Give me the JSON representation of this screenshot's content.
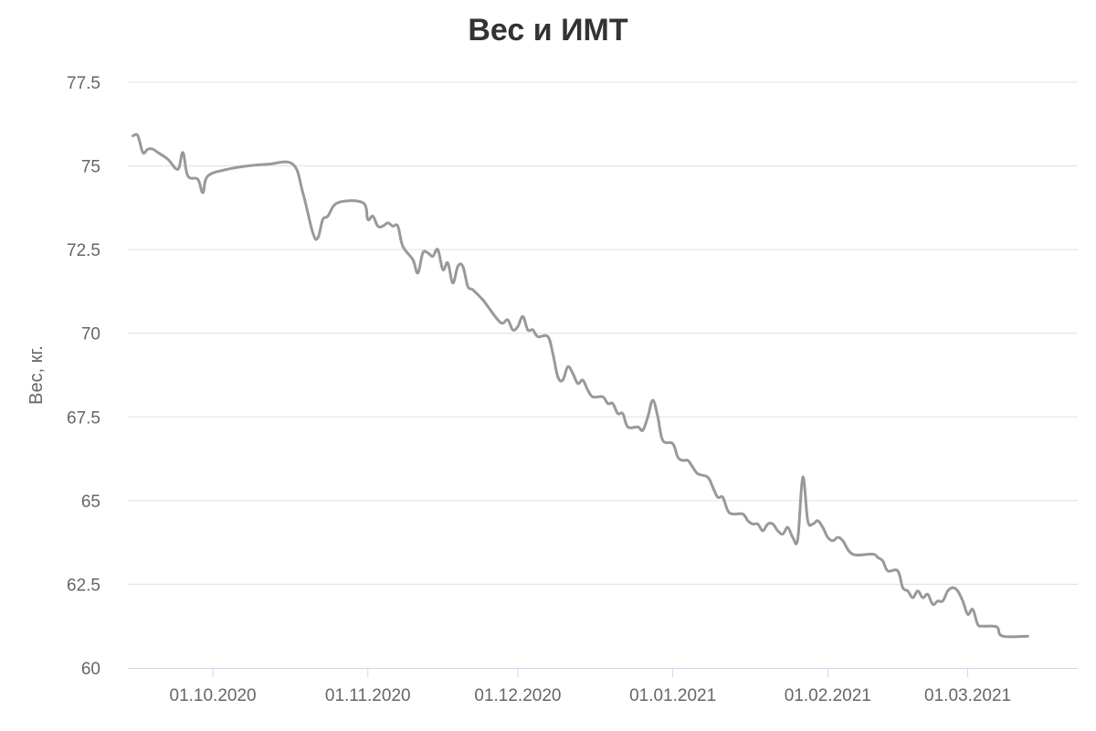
{
  "chart_data": {
    "type": "line",
    "title": "Вес и ИМТ",
    "xlabel": "",
    "ylabel": "Вес, кг.",
    "ylim": [
      60,
      77.5
    ],
    "xlim": [
      "2020-09-14",
      "2021-03-23"
    ],
    "yticks": [
      "60",
      "62.5",
      "65",
      "67.5",
      "70",
      "72.5",
      "75",
      "77.5"
    ],
    "xticks": [
      {
        "date": "2020-10-01",
        "label": "01.10.2020"
      },
      {
        "date": "2020-11-01",
        "label": "01.11.2020"
      },
      {
        "date": "2020-12-01",
        "label": "01.12.2020"
      },
      {
        "date": "2021-01-01",
        "label": "01.01.2021"
      },
      {
        "date": "2021-02-01",
        "label": "01.02.2021"
      },
      {
        "date": "2021-03-01",
        "label": "01.03.2021"
      }
    ],
    "grid": true,
    "line_color": "#999999",
    "series": [
      {
        "points": [
          [
            "2020-09-15",
            75.9
          ],
          [
            "2020-09-16",
            75.9
          ],
          [
            "2020-09-17",
            75.4
          ],
          [
            "2020-09-18",
            75.5
          ],
          [
            "2020-09-19",
            75.5
          ],
          [
            "2020-09-20",
            75.4
          ],
          [
            "2020-09-22",
            75.2
          ],
          [
            "2020-09-24",
            74.9
          ],
          [
            "2020-09-25",
            75.4
          ],
          [
            "2020-09-26",
            74.7
          ],
          [
            "2020-09-28",
            74.6
          ],
          [
            "2020-09-29",
            74.2
          ],
          [
            "2020-09-30",
            74.7
          ],
          [
            "2020-10-04",
            74.9
          ],
          [
            "2020-10-08",
            75.0
          ],
          [
            "2020-10-12",
            75.05
          ],
          [
            "2020-10-17",
            75.05
          ],
          [
            "2020-10-19",
            74.2
          ],
          [
            "2020-10-21",
            73.0
          ],
          [
            "2020-10-22",
            72.85
          ],
          [
            "2020-10-23",
            73.4
          ],
          [
            "2020-10-24",
            73.5
          ],
          [
            "2020-10-26",
            73.9
          ],
          [
            "2020-10-31",
            73.9
          ],
          [
            "2020-11-01",
            73.4
          ],
          [
            "2020-11-02",
            73.5
          ],
          [
            "2020-11-03",
            73.2
          ],
          [
            "2020-11-04",
            73.2
          ],
          [
            "2020-11-05",
            73.3
          ],
          [
            "2020-11-06",
            73.2
          ],
          [
            "2020-11-07",
            73.2
          ],
          [
            "2020-11-08",
            72.6
          ],
          [
            "2020-11-10",
            72.2
          ],
          [
            "2020-11-11",
            71.8
          ],
          [
            "2020-11-12",
            72.4
          ],
          [
            "2020-11-13",
            72.4
          ],
          [
            "2020-11-14",
            72.3
          ],
          [
            "2020-11-15",
            72.5
          ],
          [
            "2020-11-16",
            71.9
          ],
          [
            "2020-11-17",
            72.1
          ],
          [
            "2020-11-18",
            71.5
          ],
          [
            "2020-11-19",
            72.0
          ],
          [
            "2020-11-20",
            72.0
          ],
          [
            "2020-11-21",
            71.4
          ],
          [
            "2020-11-22",
            71.3
          ],
          [
            "2020-11-24",
            71.0
          ],
          [
            "2020-11-25",
            70.8
          ],
          [
            "2020-11-27",
            70.4
          ],
          [
            "2020-11-28",
            70.3
          ],
          [
            "2020-11-29",
            70.4
          ],
          [
            "2020-11-30",
            70.1
          ],
          [
            "2020-12-01",
            70.2
          ],
          [
            "2020-12-02",
            70.5
          ],
          [
            "2020-12-03",
            70.1
          ],
          [
            "2020-12-04",
            70.1
          ],
          [
            "2020-12-05",
            69.9
          ],
          [
            "2020-12-07",
            69.9
          ],
          [
            "2020-12-08",
            69.4
          ],
          [
            "2020-12-09",
            68.7
          ],
          [
            "2020-12-10",
            68.6
          ],
          [
            "2020-12-11",
            69.0
          ],
          [
            "2020-12-12",
            68.8
          ],
          [
            "2020-12-13",
            68.5
          ],
          [
            "2020-12-14",
            68.6
          ],
          [
            "2020-12-15",
            68.3
          ],
          [
            "2020-12-16",
            68.1
          ],
          [
            "2020-12-18",
            68.1
          ],
          [
            "2020-12-19",
            67.9
          ],
          [
            "2020-12-20",
            67.9
          ],
          [
            "2020-12-21",
            67.6
          ],
          [
            "2020-12-22",
            67.6
          ],
          [
            "2020-12-23",
            67.2
          ],
          [
            "2020-12-25",
            67.2
          ],
          [
            "2020-12-26",
            67.1
          ],
          [
            "2020-12-27",
            67.5
          ],
          [
            "2020-12-28",
            68.0
          ],
          [
            "2020-12-29",
            67.5
          ],
          [
            "2020-12-30",
            66.8
          ],
          [
            "2021-01-01",
            66.7
          ],
          [
            "2021-01-02",
            66.3
          ],
          [
            "2021-01-03",
            66.2
          ],
          [
            "2021-01-04",
            66.2
          ],
          [
            "2021-01-05",
            66.0
          ],
          [
            "2021-01-06",
            65.8
          ],
          [
            "2021-01-08",
            65.7
          ],
          [
            "2021-01-09",
            65.4
          ],
          [
            "2021-01-10",
            65.1
          ],
          [
            "2021-01-11",
            65.1
          ],
          [
            "2021-01-12",
            64.7
          ],
          [
            "2021-01-13",
            64.6
          ],
          [
            "2021-01-15",
            64.6
          ],
          [
            "2021-01-16",
            64.4
          ],
          [
            "2021-01-17",
            64.3
          ],
          [
            "2021-01-18",
            64.3
          ],
          [
            "2021-01-19",
            64.1
          ],
          [
            "2021-01-20",
            64.3
          ],
          [
            "2021-01-21",
            64.3
          ],
          [
            "2021-01-22",
            64.1
          ],
          [
            "2021-01-23",
            64.0
          ],
          [
            "2021-01-24",
            64.2
          ],
          [
            "2021-01-25",
            63.9
          ],
          [
            "2021-01-26",
            63.85
          ],
          [
            "2021-01-27",
            65.7
          ],
          [
            "2021-01-28",
            64.4
          ],
          [
            "2021-01-29",
            64.3
          ],
          [
            "2021-01-30",
            64.4
          ],
          [
            "2021-01-31",
            64.2
          ],
          [
            "2021-02-01",
            63.9
          ],
          [
            "2021-02-02",
            63.8
          ],
          [
            "2021-02-03",
            63.9
          ],
          [
            "2021-02-04",
            63.8
          ],
          [
            "2021-02-06",
            63.4
          ],
          [
            "2021-02-10",
            63.4
          ],
          [
            "2021-02-11",
            63.3
          ],
          [
            "2021-02-12",
            63.2
          ],
          [
            "2021-02-13",
            62.9
          ],
          [
            "2021-02-15",
            62.9
          ],
          [
            "2021-02-16",
            62.4
          ],
          [
            "2021-02-17",
            62.3
          ],
          [
            "2021-02-18",
            62.1
          ],
          [
            "2021-02-19",
            62.3
          ],
          [
            "2021-02-20",
            62.1
          ],
          [
            "2021-02-21",
            62.2
          ],
          [
            "2021-02-22",
            61.9
          ],
          [
            "2021-02-23",
            62.0
          ],
          [
            "2021-02-24",
            62.0
          ],
          [
            "2021-02-25",
            62.3
          ],
          [
            "2021-02-26",
            62.4
          ],
          [
            "2021-02-27",
            62.3
          ],
          [
            "2021-02-28",
            62.0
          ],
          [
            "2021-03-01",
            61.6
          ],
          [
            "2021-03-02",
            61.75
          ],
          [
            "2021-03-03",
            61.3
          ],
          [
            "2021-03-04",
            61.25
          ],
          [
            "2021-03-06",
            61.25
          ],
          [
            "2021-03-07",
            61.2
          ],
          [
            "2021-03-08",
            60.95
          ],
          [
            "2021-03-13",
            60.95
          ]
        ]
      }
    ]
  }
}
